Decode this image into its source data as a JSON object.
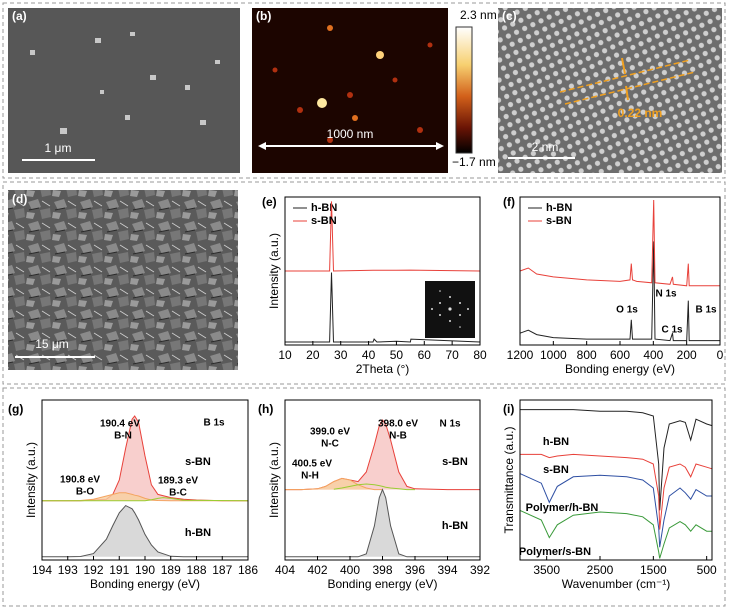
{
  "images": [
    {
      "label": "(a)",
      "scale_bar": "1 μm"
    },
    {
      "label": "(b)",
      "scale_bar": "1000 nm",
      "colorbar_max": "2.3 nm",
      "colorbar_min": "−1.7 nm"
    },
    {
      "label": "(c)",
      "scale_bar": "2 nm",
      "annotation": "0.22 nm"
    },
    {
      "label": "(d)",
      "scale_bar": "15 μm"
    }
  ],
  "chart_data": [
    {
      "type": "line",
      "label": "(e)",
      "xlabel": "2Theta (°)",
      "ylabel": "Intensity (a.u.)",
      "xlim": [
        10,
        80
      ],
      "xticks": [
        10,
        20,
        30,
        40,
        50,
        60,
        70,
        80
      ],
      "ylim": [
        0,
        100
      ],
      "legend": "upper left",
      "series": [
        {
          "name": "h-BN",
          "color": "#222222",
          "x": [
            10,
            26,
            26.7,
            27.4,
            41.6,
            42,
            43,
            50,
            55,
            55.2,
            80
          ],
          "values": [
            2,
            2,
            49,
            2,
            2,
            4,
            2,
            2.5,
            2,
            4,
            2
          ]
        },
        {
          "name": "s-BN",
          "color": "#e8413a",
          "x": [
            10,
            26,
            26.7,
            27.4,
            41.6,
            50,
            55,
            80
          ],
          "values": [
            50,
            50,
            97,
            50,
            50.5,
            50.5,
            50.6,
            50
          ]
        }
      ]
    },
    {
      "type": "line",
      "label": "(f)",
      "xlabel": "Bonding energy (eV)",
      "xlim": [
        1200,
        0
      ],
      "xticks": [
        1200,
        1000,
        800,
        600,
        400,
        200,
        0
      ],
      "ylim": [
        0,
        100
      ],
      "legend": "upper left",
      "series": [
        {
          "name": "h-BN",
          "color": "#222222",
          "x": [
            1200,
            1150,
            1100,
            1000,
            800,
            600,
            540,
            532,
            525,
            500,
            410,
            398,
            390,
            300,
            285,
            280,
            200,
            190,
            185,
            100,
            0
          ],
          "values": [
            8,
            10,
            7,
            5,
            4,
            4,
            4,
            17,
            4,
            4,
            4,
            70,
            4,
            3,
            8,
            3,
            3,
            30,
            3,
            3,
            3
          ]
        },
        {
          "name": "s-BN",
          "color": "#e8413a",
          "x": [
            1200,
            1150,
            1100,
            1000,
            800,
            600,
            540,
            532,
            525,
            500,
            410,
            398,
            390,
            300,
            285,
            280,
            200,
            190,
            185,
            100,
            0
          ],
          "values": [
            50,
            52,
            48,
            46,
            44,
            43,
            44,
            55,
            44,
            43,
            42,
            98,
            42,
            41,
            46,
            41,
            40,
            55,
            40,
            40,
            40
          ]
        }
      ],
      "annotations": [
        {
          "text": "O 1s",
          "color": "#000000"
        },
        {
          "text": "N 1s",
          "color": "#000000"
        },
        {
          "text": "B 1s",
          "color": "#000000"
        },
        {
          "text": "C 1s",
          "color": "#000000"
        }
      ]
    },
    {
      "type": "line",
      "label": "(g)",
      "xlabel": "Bonding energy (eV)",
      "ylabel": "Intensity (a.u.)",
      "xlim": [
        194,
        186
      ],
      "xticks": [
        194,
        193,
        192,
        191,
        190,
        189,
        188,
        187,
        186
      ],
      "ylim": [
        0,
        100
      ],
      "legend": "inline",
      "series": [
        {
          "name": "s-BN",
          "color": "#e8413a",
          "fill": "#f6c3c0",
          "x": [
            194,
            193,
            192.5,
            192,
            191.5,
            191.25,
            191,
            190.75,
            190.5,
            190.4,
            190.25,
            190,
            189.75,
            189.5,
            189,
            188.5,
            188,
            187,
            186
          ],
          "values": [
            37,
            37,
            37,
            37.5,
            38,
            41,
            50,
            70,
            88,
            90,
            86,
            65,
            47,
            41,
            39,
            38,
            37.5,
            37,
            37
          ]
        },
        {
          "color": "#f4a460",
          "fill": "#f8cfa0",
          "x": [
            194,
            193,
            192.5,
            192,
            191.5,
            191.25,
            191,
            190.75,
            190.5,
            190.4,
            190.25,
            190,
            189.75,
            189.5,
            189,
            188.5,
            188,
            187,
            186
          ],
          "values": [
            37,
            37,
            37.2,
            38,
            40,
            41,
            42,
            42,
            41,
            40.5,
            40,
            38.5,
            37.5,
            37.2,
            37,
            37,
            37,
            37,
            37
          ]
        },
        {
          "color": "#9acd32",
          "x": [
            194,
            190,
            189.75,
            189.5,
            189.3,
            189,
            188.5,
            186
          ],
          "values": [
            37,
            37,
            37.6,
            38.5,
            39,
            38.5,
            37.3,
            37
          ]
        },
        {
          "name": "h-BN",
          "color": "#555555",
          "fill": "#cfcfcf",
          "x": [
            194,
            193,
            192.5,
            192,
            191.5,
            191.25,
            191,
            190.75,
            190.5,
            190.4,
            190.25,
            190,
            189.75,
            189.5,
            189,
            188.5,
            188,
            187,
            186
          ],
          "values": [
            2,
            2,
            2.2,
            4,
            13,
            21.5,
            29.5,
            34,
            32,
            29.5,
            25,
            16,
            9.4,
            5,
            2.3,
            2,
            2,
            2,
            2
          ]
        }
      ],
      "annotations": [
        {
          "text": "190.4 eV",
          "color": "#f08080"
        },
        {
          "text": "B-N",
          "color": "#f08080"
        },
        {
          "text": "190.8 eV",
          "color": "#f09a50"
        },
        {
          "text": "B-O",
          "color": "#f09a50"
        },
        {
          "text": "189.3 eV",
          "color": "#8cc63f"
        },
        {
          "text": "B-C",
          "color": "#8cc63f"
        },
        {
          "text": "B 1s",
          "color": "#000000"
        }
      ]
    },
    {
      "type": "line",
      "label": "(h)",
      "xlabel": "Bonding energy (eV)",
      "ylabel": "Intensity (a.u.)",
      "xlim": [
        404,
        392
      ],
      "xticks": [
        404,
        402,
        400,
        398,
        396,
        394,
        392
      ],
      "ylim": [
        0,
        100
      ],
      "legend": "inline",
      "series": [
        {
          "name": "s-BN",
          "color": "#e8413a",
          "fill": "#f6c3c0",
          "x": [
            404,
            403,
            402,
            401.5,
            401,
            400.5,
            400,
            399.5,
            399,
            398.5,
            398.2,
            398,
            397.8,
            397.5,
            397,
            396.5,
            396,
            394,
            392
          ],
          "values": [
            44,
            44,
            44.5,
            46,
            49,
            51,
            50,
            49,
            55,
            72,
            84,
            87.5,
            85,
            75,
            55,
            46,
            44.5,
            44,
            44
          ]
        },
        {
          "color": "#f4a460",
          "fill": "#f8cfa0",
          "x": [
            404,
            403,
            402,
            401.5,
            401,
            400.5,
            400,
            399.5,
            399,
            398.5,
            398
          ],
          "values": [
            44,
            44,
            44.5,
            46,
            49,
            51,
            50,
            47,
            45,
            44,
            44
          ]
        },
        {
          "color": "#9acd32",
          "x": [
            401,
            400.5,
            400,
            399.5,
            399,
            398.5,
            398.2,
            398,
            397.8,
            397.5,
            397,
            396.5,
            396
          ],
          "values": [
            44.2,
            45,
            46,
            47,
            47.5,
            47,
            46.5,
            46,
            45.5,
            45,
            44.5,
            44,
            44
          ]
        },
        {
          "name": "h-BN",
          "color": "#555555",
          "fill": "#cfcfcf",
          "x": [
            404,
            403,
            402,
            401.5,
            401,
            400.5,
            400,
            399.5,
            399,
            398.5,
            398.2,
            398,
            397.8,
            397.5,
            397,
            396.5,
            396,
            394,
            392
          ],
          "values": [
            2,
            2,
            2,
            2,
            2,
            2,
            2,
            2,
            3.8,
            21.3,
            39,
            44,
            39,
            21.3,
            3.8,
            2,
            2,
            2,
            2
          ]
        }
      ],
      "annotations": [
        {
          "text": "399.0 eV",
          "color": "#8cc63f"
        },
        {
          "text": "N-C",
          "color": "#8cc63f"
        },
        {
          "text": "398.0 eV",
          "color": "#f08080"
        },
        {
          "text": "N-B",
          "color": "#f08080"
        },
        {
          "text": "400.5 eV",
          "color": "#f09a50"
        },
        {
          "text": "N-H",
          "color": "#f09a50"
        },
        {
          "text": "N 1s",
          "color": "#000000"
        }
      ]
    },
    {
      "type": "line",
      "label": "(i)",
      "xlabel": "Wavenumber (cm⁻¹)",
      "ylabel": "Transmittance (a.u.)",
      "xlim": [
        4000,
        400
      ],
      "xticks": [
        3500,
        2500,
        1500,
        500
      ],
      "ylim": [
        0,
        100
      ],
      "legend": "inline",
      "series": [
        {
          "name": "h-BN",
          "color": "#222222",
          "x": [
            4000,
            3600,
            3450,
            3300,
            3000,
            2500,
            2000,
            1700,
            1500,
            1400,
            1380,
            1300,
            1200,
            1000,
            900,
            800,
            700,
            500,
            400
          ],
          "values": [
            94,
            94,
            94,
            94,
            94,
            93,
            93,
            92,
            90,
            60,
            31,
            70,
            85,
            87,
            86,
            75,
            88,
            85,
            84
          ]
        },
        {
          "name": "s-BN",
          "color": "#e8413a",
          "x": [
            4000,
            3600,
            3450,
            3300,
            3000,
            2500,
            2000,
            1700,
            1500,
            1400,
            1380,
            1300,
            1200,
            1000,
            900,
            800,
            700,
            500,
            400
          ],
          "values": [
            66,
            66,
            64,
            65,
            66,
            65,
            64,
            63,
            60,
            40,
            19,
            45,
            58,
            60,
            58,
            52,
            60,
            58,
            57
          ]
        },
        {
          "name": "Polymer/h-BN",
          "color": "#2e4fa3",
          "x": [
            4000,
            3600,
            3450,
            3300,
            3000,
            2500,
            2000,
            1700,
            1500,
            1400,
            1380,
            1300,
            1200,
            1000,
            900,
            800,
            700,
            500,
            400
          ],
          "values": [
            54,
            48,
            36,
            46,
            52,
            53,
            52,
            50,
            45,
            20,
            8,
            25,
            40,
            45,
            42,
            38,
            44,
            40,
            40
          ]
        },
        {
          "name": "Polymer/s-BN",
          "color": "#3a9a3a",
          "x": [
            4000,
            3600,
            3450,
            3300,
            3000,
            2500,
            2000,
            1700,
            1500,
            1400,
            1380,
            1300,
            1200,
            1000,
            900,
            800,
            700,
            500,
            400
          ],
          "values": [
            31,
            25,
            14,
            22,
            28,
            30,
            29,
            27,
            22,
            5,
            1,
            10,
            20,
            24,
            22,
            18,
            22,
            18,
            18
          ]
        }
      ]
    }
  ]
}
